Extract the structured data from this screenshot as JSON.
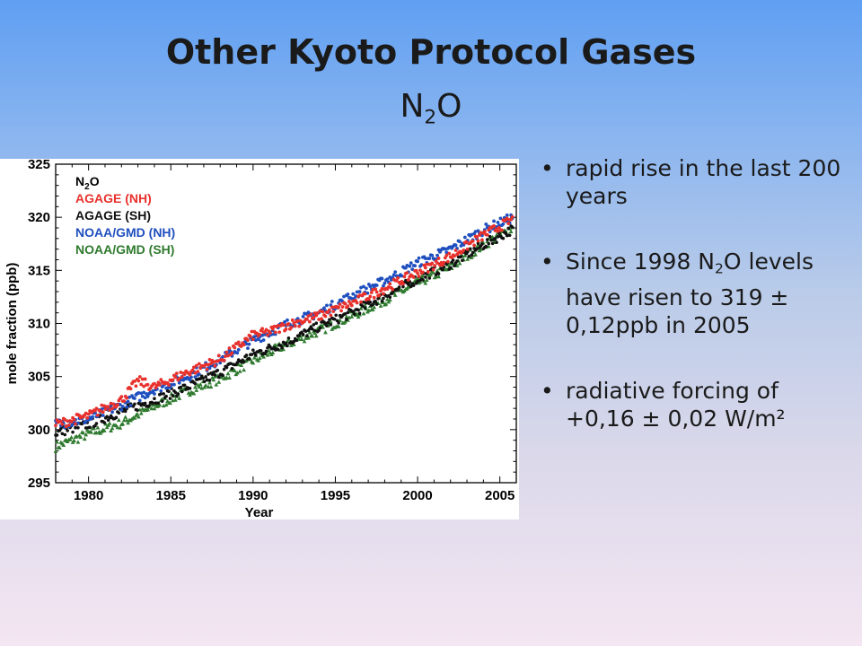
{
  "slide": {
    "title": "Other Kyoto Protocol Gases",
    "subtitle_base": "N",
    "subtitle_sub": "2",
    "subtitle_tail": "O"
  },
  "bullets": [
    {
      "text": "rapid rise in the last 200 years"
    },
    {
      "pre": "Since 1998 N",
      "sub": "2",
      "post": "O levels have risen to 319 ± 0,12ppb in 2005"
    },
    {
      "text": "radiative forcing of +0,16 ± 0,02 W/m²"
    }
  ],
  "bullet_glyph": "•",
  "chart_data": {
    "type": "scatter",
    "xlabel": "Year",
    "ylabel": "mole fraction (ppb)",
    "xlim": [
      1978,
      2006
    ],
    "ylim": [
      295,
      325
    ],
    "xticks": [
      1980,
      1985,
      1990,
      1995,
      2000,
      2005
    ],
    "yticks": [
      295,
      300,
      305,
      310,
      315,
      320,
      325
    ],
    "legend_position": "top-left",
    "legend_title": {
      "base": "N",
      "sub": "2",
      "tail": "O"
    },
    "series": [
      {
        "name": "AGAGE (NH)",
        "color": "#e8312c",
        "x": [
          1978,
          1980,
          1982,
          1983,
          1984,
          1986,
          1988,
          1990,
          1991,
          1992,
          1994,
          1996,
          1998,
          2000,
          2002,
          2004,
          2005.8
        ],
        "y": [
          300.5,
          301.3,
          302.8,
          304.6,
          304.0,
          305.4,
          306.6,
          308.9,
          309.2,
          309.8,
          310.7,
          311.9,
          313.3,
          314.8,
          316.3,
          318.3,
          319.8
        ]
      },
      {
        "name": "AGAGE (SH)",
        "color": "#111111",
        "x": [
          1978,
          1980,
          1982,
          1984,
          1986,
          1988,
          1990,
          1992,
          1994,
          1996,
          1998,
          2000,
          2002,
          2004,
          2005.8
        ],
        "y": [
          299.7,
          300.5,
          301.7,
          302.8,
          304.0,
          305.4,
          307.1,
          308.2,
          309.7,
          311.0,
          312.6,
          314.2,
          315.6,
          317.4,
          318.9
        ]
      },
      {
        "name": "NOAA/GMD (NH)",
        "color": "#1f4fbf",
        "x": [
          1978,
          1980,
          1982,
          1984,
          1986,
          1988,
          1990,
          1992,
          1994,
          1996,
          1998,
          2000,
          2002,
          2004,
          2005.8
        ],
        "y": [
          300.5,
          301.0,
          302.3,
          303.8,
          305.0,
          306.6,
          308.4,
          309.9,
          311.0,
          312.6,
          314.0,
          315.7,
          317.0,
          318.8,
          320.0
        ]
      },
      {
        "name": "NOAA/GMD (SH)",
        "color": "#2f7a2f",
        "x": [
          1978,
          1980,
          1982,
          1984,
          1986,
          1988,
          1990,
          1992,
          1994,
          1996,
          1998,
          2000,
          2002,
          2004,
          2005.8
        ],
        "y": [
          298.4,
          299.6,
          300.6,
          302.2,
          303.6,
          304.8,
          306.5,
          308.0,
          309.3,
          310.7,
          312.2,
          313.8,
          315.3,
          317.4,
          319.0
        ]
      }
    ]
  }
}
